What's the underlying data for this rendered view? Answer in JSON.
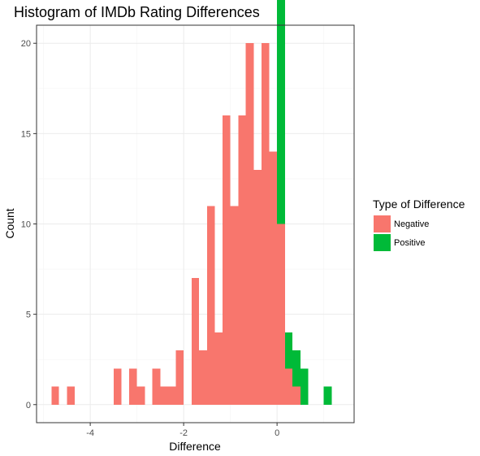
{
  "chart_data": {
    "type": "bar",
    "title": "Histogram of IMDb Rating Differences",
    "xlabel": "Difference",
    "ylabel": "Count",
    "xlim": [
      -5.15,
      1.65
    ],
    "ylim": [
      -1.0,
      21.0
    ],
    "x_ticks": [
      -4,
      -2,
      0
    ],
    "y_ticks": [
      0,
      5,
      10,
      15,
      20
    ],
    "grid": true,
    "legend_position": "right",
    "legend_title": "Type of Difference",
    "bin_width": 0.1667,
    "series": [
      {
        "name": "Negative",
        "color": "#F8766D",
        "bins": [
          {
            "x0": -4.83,
            "x1": -4.67,
            "count": 1
          },
          {
            "x0": -4.5,
            "x1": -4.33,
            "count": 1
          },
          {
            "x0": -3.5,
            "x1": -3.33,
            "count": 2
          },
          {
            "x0": -3.17,
            "x1": -3.0,
            "count": 2
          },
          {
            "x0": -3.0,
            "x1": -2.83,
            "count": 1
          },
          {
            "x0": -2.67,
            "x1": -2.5,
            "count": 2
          },
          {
            "x0": -2.5,
            "x1": -2.33,
            "count": 1
          },
          {
            "x0": -2.33,
            "x1": -2.17,
            "count": 1
          },
          {
            "x0": -2.17,
            "x1": -2.0,
            "count": 3
          },
          {
            "x0": -1.83,
            "x1": -1.67,
            "count": 7
          },
          {
            "x0": -1.67,
            "x1": -1.5,
            "count": 3
          },
          {
            "x0": -1.5,
            "x1": -1.33,
            "count": 11
          },
          {
            "x0": -1.33,
            "x1": -1.17,
            "count": 4
          },
          {
            "x0": -1.17,
            "x1": -1.0,
            "count": 16
          },
          {
            "x0": -1.0,
            "x1": -0.83,
            "count": 11
          },
          {
            "x0": -0.83,
            "x1": -0.67,
            "count": 16
          },
          {
            "x0": -0.67,
            "x1": -0.5,
            "count": 20
          },
          {
            "x0": -0.5,
            "x1": -0.33,
            "count": 13
          },
          {
            "x0": -0.33,
            "x1": -0.17,
            "count": 20
          },
          {
            "x0": -0.17,
            "x1": 0.0,
            "count": 14
          },
          {
            "x0": 0.0,
            "x1": 0.17,
            "count": 10
          },
          {
            "x0": 0.17,
            "x1": 0.33,
            "count": 2
          },
          {
            "x0": 0.33,
            "x1": 0.5,
            "count": 1
          }
        ]
      },
      {
        "name": "Positive",
        "color": "#00BA38",
        "bins": [
          {
            "x0": 0.0,
            "x1": 0.17,
            "count": 13
          },
          {
            "x0": 0.17,
            "x1": 0.33,
            "count": 2
          },
          {
            "x0": 0.33,
            "x1": 0.5,
            "count": 2
          },
          {
            "x0": 0.5,
            "x1": 0.67,
            "count": 2
          },
          {
            "x0": 1.0,
            "x1": 1.17,
            "count": 1
          }
        ]
      }
    ]
  }
}
